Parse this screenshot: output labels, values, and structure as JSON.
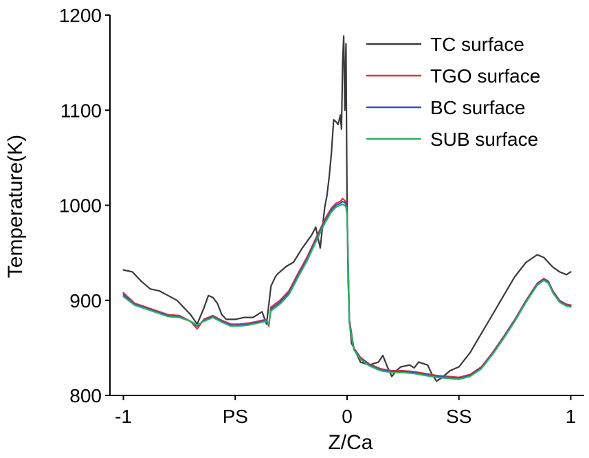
{
  "chart_data": {
    "type": "line",
    "xlabel": "Z/Ca",
    "ylabel": "Temperature(K)",
    "xlim": [
      -1.06,
      1.06
    ],
    "ylim": [
      800,
      1200
    ],
    "xticks": [
      {
        "value": -1,
        "label": "-1"
      },
      {
        "value": -0.5,
        "label": "PS"
      },
      {
        "value": 0,
        "label": "0"
      },
      {
        "value": 0.5,
        "label": "SS"
      },
      {
        "value": 1,
        "label": "1"
      }
    ],
    "yticks": [
      800,
      900,
      1000,
      1100,
      1200
    ],
    "legend_position": "top-right",
    "series": [
      {
        "name": "TC surface",
        "color": "#3a3a3a",
        "x": [
          -1.0,
          -0.96,
          -0.92,
          -0.88,
          -0.84,
          -0.8,
          -0.76,
          -0.72,
          -0.7,
          -0.67,
          -0.64,
          -0.62,
          -0.6,
          -0.58,
          -0.56,
          -0.54,
          -0.5,
          -0.46,
          -0.42,
          -0.38,
          -0.36,
          -0.34,
          -0.32,
          -0.31,
          -0.3,
          -0.29,
          -0.27,
          -0.24,
          -0.2,
          -0.16,
          -0.14,
          -0.12,
          -0.1,
          -0.09,
          -0.08,
          -0.07,
          -0.06,
          -0.05,
          -0.04,
          -0.03,
          -0.025,
          -0.02,
          -0.015,
          -0.01,
          -0.005,
          0.0,
          0.005,
          0.01,
          0.02,
          0.04,
          0.06,
          0.1,
          0.14,
          0.16,
          0.18,
          0.2,
          0.22,
          0.24,
          0.28,
          0.3,
          0.32,
          0.36,
          0.38,
          0.4,
          0.42,
          0.44,
          0.46,
          0.5,
          0.55,
          0.6,
          0.65,
          0.7,
          0.75,
          0.8,
          0.85,
          0.88,
          0.9,
          0.92,
          0.95,
          0.98,
          1.0
        ],
        "y": [
          932,
          930,
          920,
          912,
          910,
          905,
          900,
          890,
          885,
          875,
          892,
          905,
          903,
          897,
          885,
          880,
          880,
          882,
          882,
          888,
          875,
          915,
          925,
          928,
          930,
          932,
          936,
          940,
          955,
          968,
          977,
          955,
          998,
          1010,
          1030,
          1055,
          1090,
          1088,
          1085,
          1095,
          1080,
          1150,
          1178,
          1100,
          1170,
          1000,
          920,
          880,
          855,
          845,
          835,
          832,
          835,
          842,
          830,
          820,
          826,
          830,
          832,
          829,
          835,
          832,
          822,
          815,
          818,
          822,
          826,
          830,
          845,
          865,
          885,
          905,
          925,
          940,
          948,
          945,
          940,
          935,
          930,
          927,
          930
        ]
      },
      {
        "name": "TGO surface",
        "color": "#e03040",
        "x": [
          -1.0,
          -0.95,
          -0.9,
          -0.85,
          -0.8,
          -0.75,
          -0.7,
          -0.67,
          -0.64,
          -0.6,
          -0.56,
          -0.52,
          -0.48,
          -0.44,
          -0.4,
          -0.36,
          -0.35,
          -0.34,
          -0.3,
          -0.26,
          -0.22,
          -0.18,
          -0.14,
          -0.1,
          -0.07,
          -0.05,
          -0.03,
          -0.02,
          -0.01,
          -0.005,
          0.0,
          0.005,
          0.01,
          0.03,
          0.06,
          0.1,
          0.15,
          0.2,
          0.25,
          0.3,
          0.35,
          0.4,
          0.45,
          0.5,
          0.55,
          0.6,
          0.65,
          0.7,
          0.75,
          0.8,
          0.85,
          0.88,
          0.9,
          0.92,
          0.95,
          0.98,
          1.0
        ],
        "y": [
          908,
          897,
          893,
          889,
          885,
          884,
          878,
          870,
          880,
          884,
          879,
          875,
          875,
          876,
          878,
          880,
          873,
          893,
          900,
          910,
          928,
          945,
          965,
          985,
          997,
          1002,
          1004,
          1007,
          1005,
          1003,
          995,
          940,
          880,
          850,
          840,
          833,
          828,
          826,
          826,
          825,
          823,
          821,
          820,
          819,
          822,
          830,
          845,
          862,
          880,
          900,
          918,
          923,
          920,
          910,
          900,
          896,
          895
        ]
      },
      {
        "name": "BC surface",
        "color": "#2f55b8",
        "x": [
          -1.0,
          -0.95,
          -0.9,
          -0.85,
          -0.8,
          -0.75,
          -0.7,
          -0.67,
          -0.64,
          -0.6,
          -0.56,
          -0.52,
          -0.48,
          -0.44,
          -0.4,
          -0.36,
          -0.35,
          -0.34,
          -0.3,
          -0.26,
          -0.22,
          -0.18,
          -0.14,
          -0.1,
          -0.07,
          -0.05,
          -0.03,
          -0.02,
          -0.01,
          -0.005,
          0.0,
          0.005,
          0.01,
          0.03,
          0.06,
          0.1,
          0.15,
          0.2,
          0.25,
          0.3,
          0.35,
          0.4,
          0.45,
          0.5,
          0.55,
          0.6,
          0.65,
          0.7,
          0.75,
          0.8,
          0.85,
          0.88,
          0.9,
          0.92,
          0.95,
          0.98,
          1.0
        ],
        "y": [
          906,
          896,
          892,
          888,
          884,
          883,
          878,
          873,
          879,
          883,
          878,
          874,
          874,
          875,
          877,
          879,
          874,
          891,
          898,
          908,
          926,
          943,
          963,
          983,
          995,
          1000,
          1002,
          1004,
          1003,
          1001,
          993,
          938,
          878,
          849,
          839,
          832,
          827,
          825,
          825,
          824,
          822,
          820,
          819,
          818,
          821,
          829,
          844,
          861,
          879,
          899,
          917,
          922,
          919,
          909,
          899,
          895,
          894
        ]
      },
      {
        "name": "SUB surface",
        "color": "#2db060",
        "x": [
          -1.0,
          -0.95,
          -0.9,
          -0.85,
          -0.8,
          -0.75,
          -0.7,
          -0.67,
          -0.64,
          -0.6,
          -0.56,
          -0.52,
          -0.48,
          -0.44,
          -0.4,
          -0.36,
          -0.35,
          -0.34,
          -0.3,
          -0.26,
          -0.22,
          -0.18,
          -0.14,
          -0.1,
          -0.07,
          -0.05,
          -0.03,
          -0.02,
          -0.01,
          -0.005,
          0.0,
          0.005,
          0.01,
          0.03,
          0.06,
          0.1,
          0.15,
          0.2,
          0.25,
          0.3,
          0.35,
          0.4,
          0.45,
          0.5,
          0.55,
          0.6,
          0.65,
          0.7,
          0.75,
          0.8,
          0.85,
          0.88,
          0.9,
          0.92,
          0.95,
          0.98,
          1.0
        ],
        "y": [
          904,
          895,
          891,
          887,
          883,
          882,
          878,
          874,
          878,
          882,
          877,
          873,
          873,
          874,
          876,
          878,
          875,
          889,
          896,
          906,
          924,
          941,
          961,
          981,
          993,
          998,
          1000,
          1001,
          1000,
          998,
          990,
          935,
          876,
          848,
          838,
          831,
          826,
          824,
          824,
          823,
          821,
          819,
          818,
          817,
          820,
          828,
          843,
          860,
          878,
          898,
          916,
          921,
          918,
          908,
          898,
          894,
          893
        ]
      }
    ]
  }
}
